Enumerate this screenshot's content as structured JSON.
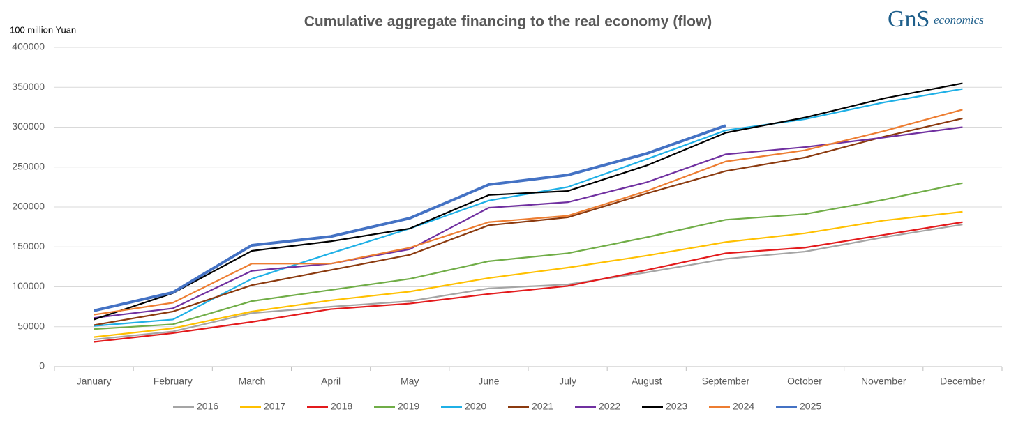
{
  "chart_data": {
    "type": "line",
    "title": "Cumulative aggregate financing to the real economy (flow)",
    "y_label": "100 million Yuan",
    "categories": [
      "January",
      "February",
      "March",
      "April",
      "May",
      "June",
      "July",
      "August",
      "September",
      "October",
      "November",
      "December"
    ],
    "ylim": [
      0,
      400000
    ],
    "yticks": [
      0,
      50000,
      100000,
      150000,
      200000,
      250000,
      300000,
      350000,
      400000
    ],
    "grid": true,
    "legend": "bottom",
    "series": [
      {
        "name": "2016",
        "color": "#a5a5a5",
        "values": [
          34000,
          44000,
          67000,
          75000,
          82000,
          98000,
          103000,
          118000,
          135000,
          144000,
          162000,
          178000
        ]
      },
      {
        "name": "2017",
        "color": "#ffc000",
        "values": [
          37000,
          48000,
          69000,
          83000,
          94000,
          111000,
          124000,
          139000,
          156000,
          167000,
          183000,
          194000
        ]
      },
      {
        "name": "2018",
        "color": "#e31a1c",
        "values": [
          31000,
          42000,
          56000,
          72000,
          79000,
          91000,
          101000,
          121000,
          142000,
          149000,
          165000,
          181000
        ]
      },
      {
        "name": "2019",
        "color": "#70ad47",
        "values": [
          47000,
          53000,
          82000,
          96000,
          110000,
          132000,
          142000,
          162000,
          184000,
          191000,
          209000,
          230000
        ]
      },
      {
        "name": "2020",
        "color": "#1fb0e6",
        "values": [
          51000,
          59000,
          110000,
          142000,
          173000,
          208000,
          225000,
          260000,
          296000,
          310000,
          331000,
          348000
        ]
      },
      {
        "name": "2021",
        "color": "#8b3a0f",
        "values": [
          52000,
          69000,
          102000,
          121000,
          140000,
          177000,
          187000,
          217000,
          245000,
          262000,
          288000,
          311000
        ]
      },
      {
        "name": "2022",
        "color": "#7030a0",
        "values": [
          61000,
          73000,
          120000,
          129000,
          147000,
          199000,
          206000,
          231000,
          266000,
          275000,
          287000,
          300000
        ]
      },
      {
        "name": "2023",
        "color": "#000000",
        "values": [
          59000,
          92000,
          145000,
          157000,
          173000,
          215000,
          220000,
          252000,
          293000,
          312000,
          336000,
          355000
        ]
      },
      {
        "name": "2024",
        "color": "#ed7d31",
        "values": [
          65000,
          80000,
          129000,
          129000,
          149000,
          181000,
          189000,
          220000,
          257000,
          271000,
          295000,
          322000
        ]
      },
      {
        "name": "2025",
        "color": "#4472c4",
        "width": 4,
        "values": [
          70000,
          93000,
          152000,
          163000,
          186000,
          228000,
          240000,
          267000,
          302000,
          null,
          null,
          null
        ]
      }
    ]
  },
  "logo": {
    "mark": "GnS",
    "text": "economics"
  }
}
